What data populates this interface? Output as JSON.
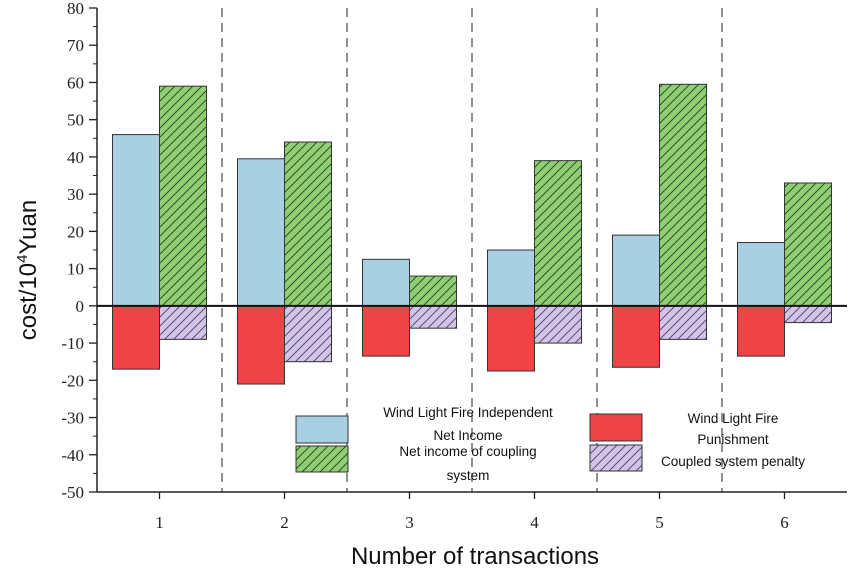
{
  "chart_data": {
    "type": "bar",
    "title": "",
    "xlabel": "Number of transactions",
    "ylabel_base": "cost/10",
    "ylabel_sup": "4",
    "ylabel_unit": "Yuan",
    "ylim": [
      -50,
      80
    ],
    "yticks": [
      80,
      70,
      60,
      50,
      40,
      30,
      20,
      10,
      0,
      -10,
      -20,
      -30,
      -40,
      -50
    ],
    "categories": [
      "1",
      "2",
      "3",
      "4",
      "5",
      "6"
    ],
    "series": [
      {
        "name": "Wind Light Fire Independent Net Income",
        "values": [
          46,
          39.5,
          12.5,
          15,
          19,
          17
        ],
        "color": "#a8cfe2",
        "hatch": false
      },
      {
        "name": "Net income of coupling system",
        "values": [
          59,
          44,
          8,
          39,
          59.5,
          33
        ],
        "color": "#8fcf73",
        "hatch": true
      },
      {
        "name": "Wind Light Fire Punishment",
        "values": [
          -17,
          -21,
          -13.5,
          -17.5,
          -16.5,
          -13.5
        ],
        "color": "#ef4346",
        "hatch": false
      },
      {
        "name": "Coupled system penalty",
        "values": [
          -9,
          -15,
          -6,
          -10,
          -9,
          -4.5
        ],
        "color": "#d2c3e8",
        "hatch": true
      }
    ],
    "legend": {
      "position": "bottom-right",
      "entries": [
        {
          "lines": [
            "Wind Light Fire Independent",
            "Net Income"
          ]
        },
        {
          "lines": [
            "Net income of coupling",
            "system"
          ]
        },
        {
          "lines": [
            "Wind Light Fire",
            "Punishment"
          ]
        },
        {
          "lines": [
            "Coupled system penalty"
          ]
        }
      ]
    },
    "separators": "dashed vertical lines between transactions",
    "zero_line": true
  }
}
